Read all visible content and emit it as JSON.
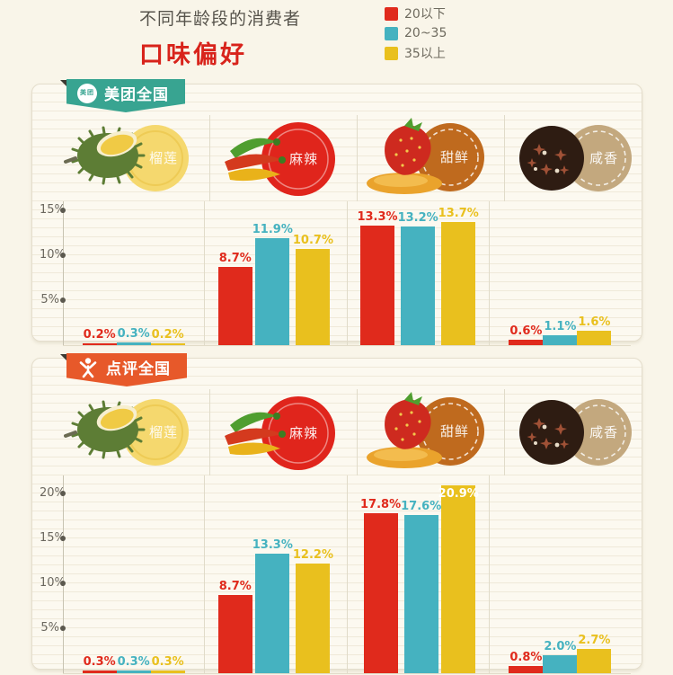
{
  "header": {
    "title_line1": "不同年龄段的消费者",
    "title_line2": "口味偏好",
    "title_accent_color": "#d8231b"
  },
  "panels": [
    {
      "name": "美团全国",
      "logo": "meituan-logo",
      "accent": "#38a491"
    },
    {
      "name": "点评全国",
      "logo": "dianping-logo",
      "accent": "#e7592a"
    }
  ],
  "chart_data": [
    {
      "type": "bar",
      "panel": "美团全国",
      "categories": [
        "榴莲",
        "麻辣",
        "甜鲜",
        "咸香"
      ],
      "series": [
        {
          "name": "20以下",
          "color": "#e02a1c",
          "values": [
            0.2,
            8.7,
            13.3,
            0.6
          ]
        },
        {
          "name": "20~35",
          "color": "#45b2c0",
          "values": [
            0.3,
            11.9,
            13.2,
            1.1
          ]
        },
        {
          "name": "35以上",
          "color": "#e9c01e",
          "values": [
            0.2,
            10.7,
            13.7,
            1.6
          ]
        }
      ],
      "unit": "%",
      "ylim": [
        0,
        16
      ],
      "yticks": [
        5,
        10,
        15
      ],
      "grid": true,
      "legend_position": "top-right",
      "inside_labels": []
    },
    {
      "type": "bar",
      "panel": "点评全国",
      "categories": [
        "榴莲",
        "麻辣",
        "甜鲜",
        "咸香"
      ],
      "series": [
        {
          "name": "20以下",
          "color": "#e02a1c",
          "values": [
            0.3,
            8.7,
            17.8,
            0.8
          ]
        },
        {
          "name": "20~35",
          "color": "#45b2c0",
          "values": [
            0.3,
            13.3,
            17.6,
            2.0
          ]
        },
        {
          "name": "35以上",
          "color": "#e9c01e",
          "values": [
            0.3,
            12.2,
            20.9,
            2.7
          ]
        }
      ],
      "unit": "%",
      "ylim": [
        0,
        22
      ],
      "yticks": [
        5,
        10,
        15,
        20
      ],
      "grid": true,
      "legend_position": "top-right",
      "inside_labels": [
        [
          2,
          2
        ]
      ]
    }
  ]
}
